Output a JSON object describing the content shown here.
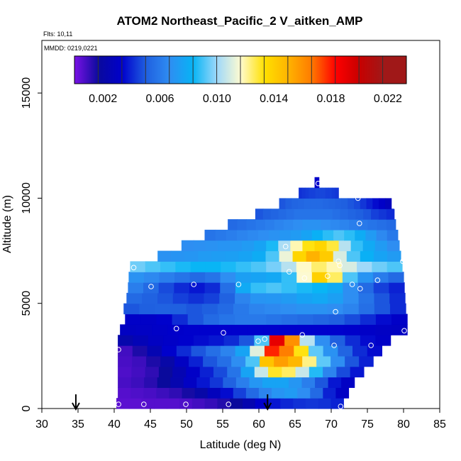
{
  "chart_data": {
    "type": "heatmap",
    "title": "ATOM2 Northeast_Pacific_2 V_aitken_AMP",
    "flights_label": "Flts: 10,11",
    "dates_label": "MMDD: 0219,0221",
    "xlabel": "Latitude (deg N)",
    "ylabel": "Altitude (m)",
    "xlim": [
      30,
      85
    ],
    "ylim": [
      0,
      17500
    ],
    "x_ticks": [
      "30",
      "35",
      "40",
      "45",
      "50",
      "55",
      "60",
      "65",
      "70",
      "75",
      "80",
      "85"
    ],
    "y_ticks": [
      "0",
      "5000",
      "10000",
      "15000"
    ],
    "colorbar": {
      "range": [
        0.0,
        0.0233
      ],
      "tick_values": [
        0.002,
        0.006,
        0.01,
        0.014,
        0.018,
        0.022
      ],
      "tick_labels": [
        "0.002",
        "0.006",
        "0.010",
        "0.014",
        "0.018",
        "0.022"
      ],
      "colors": [
        "#7a12e6",
        "#0a0a9c",
        "#0000cc",
        "#1f5fe0",
        "#2f8df2",
        "#06b4f5",
        "#9ed8fa",
        "#fffbd0",
        "#ffe000",
        "#ffb400",
        "#ff7a00",
        "#ff0000",
        "#c80000",
        "#a01818"
      ]
    },
    "flight_track_arrows_latitude": [
      34.7,
      61.2
    ],
    "grid": false,
    "rows": [
      {
        "alt": 250,
        "lat_start": 40.3,
        "lat_end": 71.7,
        "values": [
          0.0005,
          0.0005,
          0.0006,
          0.0006,
          0.0006,
          0.0007,
          0.0009,
          0.0011,
          0.0014,
          0.0018,
          0.0025,
          0.0035,
          0.004,
          0.0043,
          0.0045,
          0.0046,
          0.0045,
          0.0042
        ]
      },
      {
        "alt": 750,
        "lat_start": 40.5,
        "lat_end": 72.4,
        "values": [
          0.0006,
          0.0007,
          0.0008,
          0.001,
          0.0012,
          0.0016,
          0.0022,
          0.003,
          0.0038,
          0.0048,
          0.0058,
          0.0068,
          0.0075,
          0.0078,
          0.0072,
          0.0058,
          0.0042,
          0.0033
        ]
      },
      {
        "alt": 1250,
        "lat_start": 40.5,
        "lat_end": 73.2,
        "values": [
          0.0008,
          0.001,
          0.0013,
          0.0018,
          0.0025,
          0.0033,
          0.004,
          0.0046,
          0.0055,
          0.0066,
          0.0076,
          0.0082,
          0.0082,
          0.0076,
          0.0066,
          0.0052,
          0.004,
          0.0033
        ]
      },
      {
        "alt": 1750,
        "lat_start": 40.5,
        "lat_end": 74.5,
        "values": [
          0.0007,
          0.0009,
          0.0012,
          0.0018,
          0.0026,
          0.0034,
          0.0042,
          0.005,
          0.0062,
          0.0082,
          0.0115,
          0.014,
          0.0135,
          0.0115,
          0.0093,
          0.0068,
          0.005,
          0.004
        ]
      },
      {
        "alt": 2250,
        "lat_start": 40.5,
        "lat_end": 75.8,
        "values": [
          0.0008,
          0.001,
          0.0015,
          0.0022,
          0.0032,
          0.0042,
          0.0052,
          0.006,
          0.0072,
          0.0098,
          0.0155,
          0.0168,
          0.016,
          0.0132,
          0.01,
          0.0072,
          0.0052,
          0.0042
        ]
      },
      {
        "alt": 2750,
        "lat_start": 40.5,
        "lat_end": 77.0,
        "values": [
          0.0009,
          0.0015,
          0.0026,
          0.0036,
          0.0044,
          0.0052,
          0.006,
          0.0068,
          0.0082,
          0.012,
          0.0192,
          0.0178,
          0.0142,
          0.01,
          0.0074,
          0.0056,
          0.0044,
          0.0038
        ]
      },
      {
        "alt": 3250,
        "lat_start": 40.5,
        "lat_end": 78.2,
        "values": [
          0.0024,
          0.0028,
          0.0032,
          0.0034,
          0.0036,
          0.0038,
          0.004,
          0.0044,
          0.0052,
          0.0098,
          0.0205,
          0.0172,
          0.0112,
          0.0072,
          0.0054,
          0.0044,
          0.0038,
          0.0034
        ]
      },
      {
        "alt": 3750,
        "lat_start": 40.8,
        "lat_end": 80.5,
        "values": [
          0.0032,
          0.0033,
          0.0034,
          0.0035,
          0.0036,
          0.0036,
          0.0036,
          0.0036,
          0.0036,
          0.0036,
          0.0036,
          0.0036,
          0.0036,
          0.0036,
          0.0035,
          0.0034,
          0.0033,
          0.0032
        ]
      },
      {
        "alt": 4250,
        "lat_start": 41.5,
        "lat_end": 80.5,
        "values": [
          0.0034,
          0.0034,
          0.0036,
          0.0044,
          0.0052,
          0.0058,
          0.0062,
          0.0064,
          0.0064,
          0.0062,
          0.006,
          0.0058,
          0.0056,
          0.0054,
          0.005,
          0.0044,
          0.0038,
          0.0034
        ]
      },
      {
        "alt": 4750,
        "lat_start": 41.3,
        "lat_end": 80.3,
        "values": [
          0.0052,
          0.0054,
          0.0055,
          0.0054,
          0.0052,
          0.0054,
          0.0058,
          0.0064,
          0.0068,
          0.007,
          0.0072,
          0.0074,
          0.0074,
          0.0072,
          0.0068,
          0.006,
          0.0052,
          0.0044
        ]
      },
      {
        "alt": 5250,
        "lat_start": 41.7,
        "lat_end": 80.2,
        "values": [
          0.0058,
          0.0055,
          0.0052,
          0.0048,
          0.0045,
          0.0048,
          0.0055,
          0.0068,
          0.0075,
          0.0076,
          0.0078,
          0.0082,
          0.0084,
          0.008,
          0.0072,
          0.0062,
          0.0052,
          0.0044
        ]
      },
      {
        "alt": 5750,
        "lat_start": 41.9,
        "lat_end": 80.1,
        "values": [
          0.0066,
          0.0058,
          0.005,
          0.0044,
          0.004,
          0.0044,
          0.006,
          0.0085,
          0.0095,
          0.0098,
          0.0095,
          0.0092,
          0.009,
          0.0085,
          0.0072,
          0.0058,
          0.0048,
          0.0042
        ]
      },
      {
        "alt": 6250,
        "lat_start": 42.0,
        "lat_end": 80.0,
        "values": [
          0.0074,
          0.007,
          0.0066,
          0.0062,
          0.0058,
          0.0062,
          0.0072,
          0.008,
          0.0082,
          0.0084,
          0.0095,
          0.0125,
          0.015,
          0.0135,
          0.0098,
          0.0075,
          0.0065,
          0.0058
        ]
      },
      {
        "alt": 6750,
        "lat_start": 42.2,
        "lat_end": 79.8,
        "values": [
          0.0102,
          0.0098,
          0.0095,
          0.0092,
          0.009,
          0.009,
          0.0092,
          0.0095,
          0.0098,
          0.0103,
          0.0112,
          0.0126,
          0.0134,
          0.0128,
          0.0118,
          0.0108,
          0.0102,
          0.0098
        ]
      },
      {
        "alt": 7250,
        "lat_start": 46.0,
        "lat_end": 79.6,
        "values": [
          0.0074,
          0.0075,
          0.0076,
          0.0078,
          0.0079,
          0.008,
          0.0082,
          0.0086,
          0.0098,
          0.0122,
          0.0148,
          0.0162,
          0.0152,
          0.0118,
          0.0098,
          0.0088,
          0.0082,
          0.0078
        ]
      },
      {
        "alt": 7750,
        "lat_start": 49.3,
        "lat_end": 79.4,
        "values": [
          0.0072,
          0.0073,
          0.0074,
          0.0075,
          0.0076,
          0.0078,
          0.0082,
          0.0092,
          0.011,
          0.0128,
          0.0142,
          0.0148,
          0.0138,
          0.0112,
          0.0095,
          0.0085,
          0.0078,
          0.0072
        ]
      },
      {
        "alt": 8250,
        "lat_start": 52.5,
        "lat_end": 79.2,
        "values": [
          0.0062,
          0.0064,
          0.0066,
          0.0068,
          0.007,
          0.0072,
          0.0074,
          0.0076,
          0.0078,
          0.0082,
          0.0088,
          0.0094,
          0.0098,
          0.0094,
          0.0086,
          0.0078,
          0.007,
          0.0064
        ]
      },
      {
        "alt": 8750,
        "lat_start": 55.7,
        "lat_end": 78.9,
        "values": [
          0.0058,
          0.006,
          0.0062,
          0.0064,
          0.0066,
          0.0068,
          0.007,
          0.0072,
          0.0074,
          0.0074,
          0.0072,
          0.007,
          0.0068,
          0.0066,
          0.0064,
          0.0062,
          0.006,
          0.0058
        ]
      },
      {
        "alt": 9250,
        "lat_start": 59.5,
        "lat_end": 78.7,
        "values": [
          0.0052,
          0.0054,
          0.0056,
          0.0058,
          0.006,
          0.0062,
          0.0062,
          0.0062,
          0.0062,
          0.0062,
          0.006,
          0.0058,
          0.0056,
          0.0054,
          0.0052,
          0.0048,
          0.0046,
          0.0044
        ]
      },
      {
        "alt": 9750,
        "lat_start": 62.8,
        "lat_end": 78.3,
        "values": [
          0.0052,
          0.0054,
          0.0056,
          0.0057,
          0.0058,
          0.0058,
          0.0058,
          0.0057,
          0.0056,
          0.0055,
          0.0054,
          0.0052,
          0.005,
          0.0046,
          0.0042,
          0.0038,
          0.0034,
          0.003
        ]
      },
      {
        "alt": 10250,
        "lat_start": 65.5,
        "lat_end": 71.0,
        "values": [
          0.0045,
          0.0046,
          0.0047,
          0.0048,
          0.0048,
          0.0049,
          0.0049,
          0.0049,
          0.0048,
          0.0048,
          0.0047,
          0.0046
        ]
      },
      {
        "alt": 10750,
        "lat_start": 67.7,
        "lat_end": 68.3,
        "values": [
          0.0035
        ]
      }
    ],
    "sample_points": [
      [
        40.6,
        200
      ],
      [
        44.1,
        200
      ],
      [
        49.9,
        200
      ],
      [
        55.8,
        200
      ],
      [
        71.3,
        100
      ],
      [
        40.6,
        2800
      ],
      [
        59.9,
        3200
      ],
      [
        60.8,
        3300
      ],
      [
        70.4,
        3000
      ],
      [
        75.5,
        3000
      ],
      [
        48.6,
        3800
      ],
      [
        55.1,
        3600
      ],
      [
        66.0,
        3500
      ],
      [
        80.1,
        3700
      ],
      [
        70.6,
        4600
      ],
      [
        45.1,
        5800
      ],
      [
        51.0,
        5900
      ],
      [
        57.2,
        5900
      ],
      [
        72.9,
        5900
      ],
      [
        74.0,
        5700
      ],
      [
        66.3,
        6200
      ],
      [
        69.5,
        6300
      ],
      [
        76.4,
        6100
      ],
      [
        42.7,
        6700
      ],
      [
        64.2,
        6500
      ],
      [
        71.2,
        6800
      ],
      [
        71.0,
        7000
      ],
      [
        79.9,
        7000
      ],
      [
        63.7,
        7700
      ],
      [
        73.9,
        8800
      ],
      [
        78.9,
        9600
      ],
      [
        73.7,
        10000
      ],
      [
        68.2,
        10700
      ]
    ]
  }
}
